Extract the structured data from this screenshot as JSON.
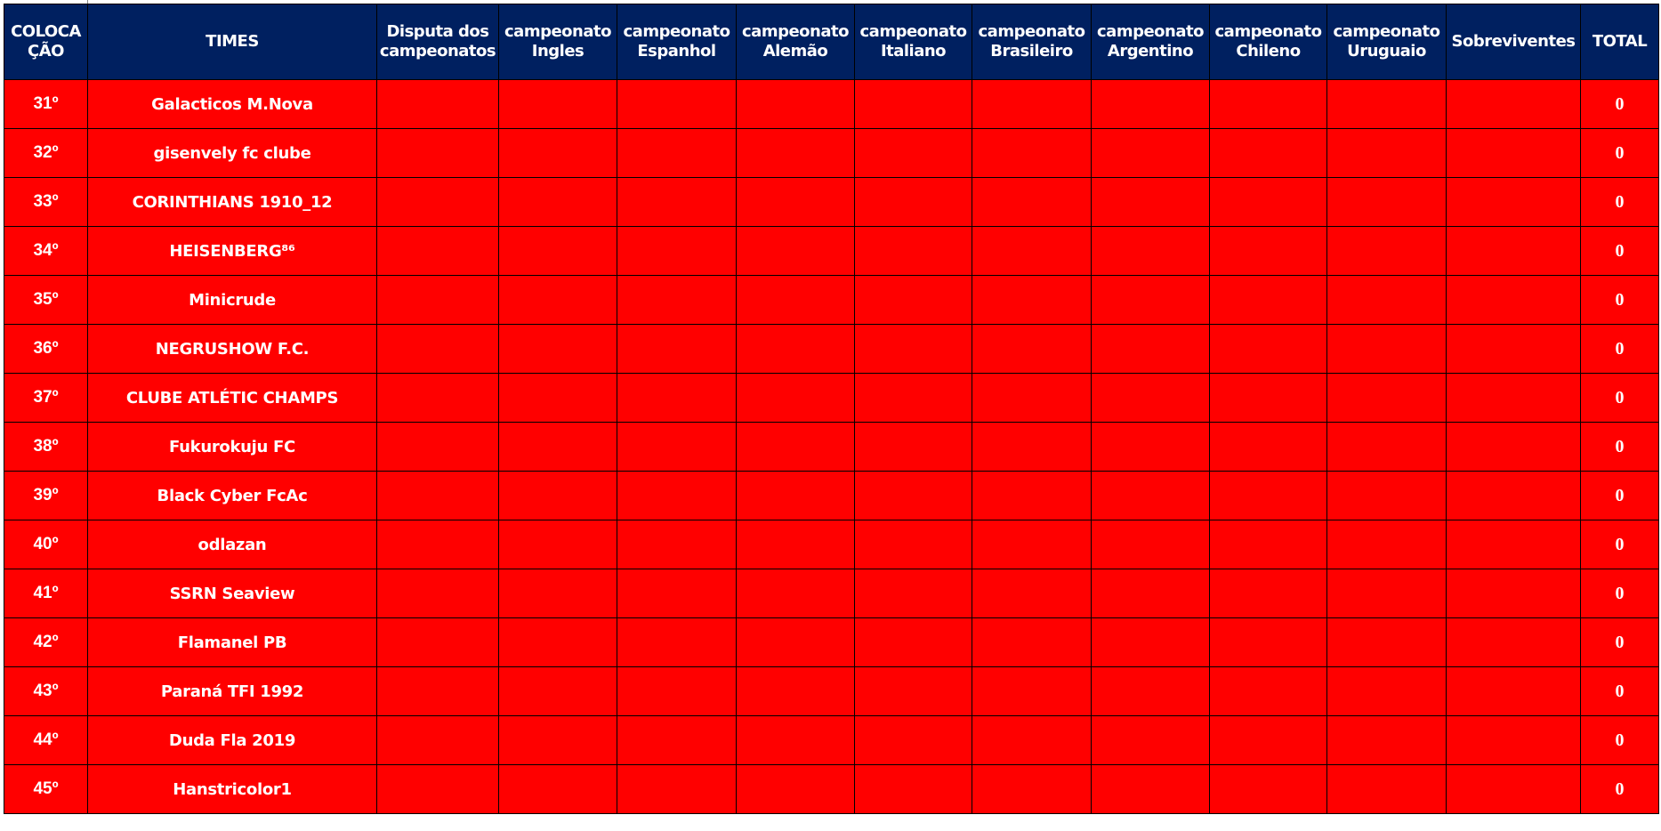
{
  "colors": {
    "header_bg": "#002060",
    "row_bg": "#ff0000",
    "text": "#ffffff",
    "grid": "#000000"
  },
  "headers": [
    [
      "COLOCA",
      "ÇÃO"
    ],
    [
      "TIMES"
    ],
    [
      "Disputa dos",
      "campeonatos"
    ],
    [
      "campeonato",
      "Ingles"
    ],
    [
      "campeonato",
      "Espanhol"
    ],
    [
      "campeonato",
      "Alemão"
    ],
    [
      "campeonato",
      "Italiano"
    ],
    [
      "campeonato",
      "Brasileiro"
    ],
    [
      "campeonato",
      "Argentino"
    ],
    [
      "campeonato",
      "Chileno"
    ],
    [
      "campeonato",
      "Uruguaio"
    ],
    [
      "Sobreviventes"
    ],
    [
      "TOTAL"
    ]
  ],
  "rows": [
    {
      "pos": "31º",
      "team": "Galacticos M.Nova",
      "total": "0"
    },
    {
      "pos": "32º",
      "team": "gisenvely fc clube",
      "total": "0"
    },
    {
      "pos": "33º",
      "team": "CORINTHIANS 1910_12",
      "total": "0"
    },
    {
      "pos": "34º",
      "team": "HEISENBERG⁸⁶",
      "total": "0"
    },
    {
      "pos": "35º",
      "team": "Minicrude",
      "total": "0"
    },
    {
      "pos": "36º",
      "team": "NEGRUSHOW F.C.",
      "total": "0"
    },
    {
      "pos": "37º",
      "team": "CLUBE ATLÉTIC CHAMPS",
      "total": "0"
    },
    {
      "pos": "38º",
      "team": "Fukurokuju FC",
      "total": "0"
    },
    {
      "pos": "39º",
      "team": "Black Cyber FcAc",
      "total": "0"
    },
    {
      "pos": "40º",
      "team": "odlazan",
      "total": "0"
    },
    {
      "pos": "41º",
      "team": "SSRN Seaview",
      "total": "0"
    },
    {
      "pos": "42º",
      "team": "Flamanel PB",
      "total": "0"
    },
    {
      "pos": "43º",
      "team": "Paraná TFI 1992",
      "total": "0"
    },
    {
      "pos": "44º",
      "team": "Duda Fla 2019",
      "total": "0"
    },
    {
      "pos": "45º",
      "team": "Hanstricolor1",
      "total": "0"
    }
  ]
}
